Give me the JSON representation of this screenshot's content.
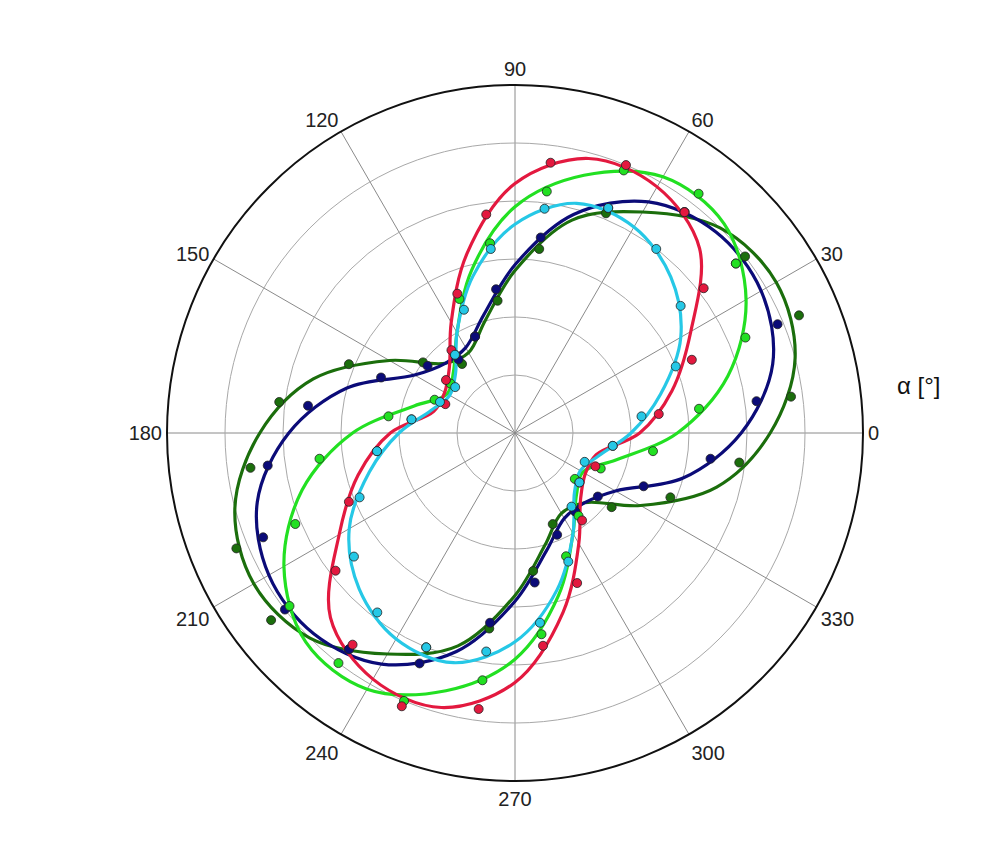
{
  "chart_data": {
    "type": "polar_scatter",
    "axis_label": "α [°]",
    "thetaticks": [
      0,
      30,
      60,
      90,
      120,
      150,
      180,
      210,
      240,
      270,
      300,
      330
    ],
    "rlim": [
      0,
      6
    ],
    "rticks": [
      1,
      2,
      3,
      4,
      5
    ],
    "grid": true,
    "fit_theta": [
      0,
      15,
      30,
      45,
      60,
      75,
      90,
      105,
      120,
      135,
      150,
      165,
      180,
      195,
      210,
      225,
      240,
      255,
      270,
      285,
      300,
      315,
      330,
      345
    ],
    "point_theta": [
      7.5,
      22.5,
      37.5,
      52.5,
      67.5,
      82.5,
      97.5,
      112.5,
      127.5,
      142.5,
      157.5,
      172.5,
      187.5,
      202.5,
      217.5,
      232.5,
      247.5,
      262.5,
      277.5,
      292.5,
      307.5,
      322.5,
      337.5,
      352.5
    ],
    "series": [
      {
        "color": "#1b6e0c",
        "fit": [
          4.4,
          5.0,
          5.2,
          5.0,
          4.4,
          3.8,
          2.8,
          2.0,
          1.6,
          1.7,
          2.5,
          3.6,
          4.4,
          5.0,
          5.2,
          5.0,
          4.4,
          3.8,
          2.8,
          2.0,
          1.6,
          1.7,
          2.5,
          3.6
        ],
        "points": [
          4.8,
          5.3,
          5.0,
          4.8,
          4.1,
          3.2,
          2.3,
          1.8,
          1.5,
          2.0,
          3.1,
          4.1,
          4.6,
          5.2,
          5.3,
          4.7,
          4.0,
          3.4,
          2.4,
          1.7,
          1.7,
          2.1,
          2.9,
          3.9
        ]
      },
      {
        "color": "#0b0b78",
        "fit": [
          3.9,
          4.6,
          4.9,
          4.9,
          4.6,
          3.9,
          2.9,
          2.1,
          1.7,
          1.7,
          2.0,
          3.0,
          3.9,
          4.6,
          4.9,
          4.9,
          4.6,
          3.9,
          2.9,
          2.1,
          1.7,
          1.7,
          2.0,
          3.0
        ],
        "points": [
          4.2,
          4.9,
          4.8,
          4.8,
          4.2,
          3.4,
          2.5,
          1.8,
          1.6,
          1.9,
          2.5,
          3.6,
          4.3,
          4.7,
          5.0,
          4.7,
          4.3,
          3.3,
          2.6,
          1.9,
          1.7,
          1.8,
          2.4,
          3.4
        ]
      },
      {
        "color": "#22e022",
        "fit": [
          2.8,
          3.8,
          4.6,
          5.1,
          5.1,
          4.6,
          3.9,
          2.9,
          2.0,
          1.5,
          1.35,
          1.8,
          2.8,
          3.8,
          4.6,
          5.1,
          5.1,
          4.6,
          3.9,
          2.9,
          2.0,
          1.5,
          1.35,
          1.8
        ],
        "points": [
          3.2,
          4.3,
          4.8,
          5.2,
          4.9,
          4.2,
          3.3,
          2.5,
          1.7,
          1.4,
          1.5,
          2.2,
          3.4,
          4.1,
          4.9,
          5.0,
          5.0,
          4.3,
          3.5,
          2.3,
          1.8,
          1.3,
          1.6,
          2.4
        ]
      },
      {
        "color": "#e3193f",
        "fit": [
          2.15,
          2.8,
          3.5,
          4.5,
          4.9,
          4.9,
          4.3,
          3.2,
          2.2,
          1.6,
          1.4,
          1.45,
          2.15,
          2.8,
          3.5,
          4.5,
          4.9,
          4.9,
          4.3,
          3.2,
          2.2,
          1.6,
          1.4,
          1.45
        ],
        "points": [
          2.5,
          3.3,
          4.1,
          4.8,
          5.0,
          4.7,
          3.8,
          2.6,
          1.8,
          1.5,
          1.3,
          1.8,
          2.4,
          3.1,
          3.9,
          4.6,
          5.1,
          4.8,
          3.7,
          2.8,
          1.9,
          1.4,
          1.5,
          1.7
        ]
      },
      {
        "color": "#26c8e6",
        "fit": [
          2.0,
          2.6,
          3.3,
          3.8,
          4.1,
          4.1,
          3.6,
          2.8,
          2.0,
          1.45,
          1.3,
          1.5,
          2.0,
          2.6,
          3.3,
          3.8,
          4.1,
          4.1,
          3.6,
          2.8,
          2.0,
          1.45,
          1.3,
          1.5
        ],
        "points": [
          2.2,
          3.0,
          3.6,
          4.0,
          4.2,
          3.9,
          3.2,
          2.3,
          1.7,
          1.3,
          1.4,
          1.8,
          2.4,
          2.9,
          3.5,
          3.9,
          4.0,
          3.8,
          3.3,
          2.4,
          1.6,
          1.4,
          1.3,
          1.7
        ]
      }
    ]
  }
}
